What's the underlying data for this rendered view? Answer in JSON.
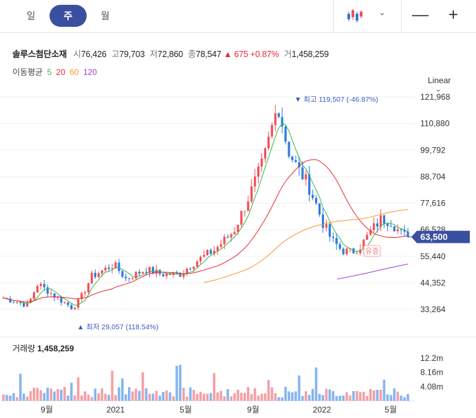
{
  "periods": [
    "일",
    "주",
    "월"
  ],
  "active_period": 1,
  "quote": {
    "name": "솔루스첨단소재",
    "open_label": "시",
    "open": "76,426",
    "high_label": "고",
    "high": "79,703",
    "low_label": "저",
    "low": "72,860",
    "close_label": "종",
    "close": "78,547",
    "change": "▲ 675 +0.87%",
    "volume_label": "거",
    "volume": "1,458,259"
  },
  "moving_average": {
    "label": "이동평균",
    "periods": [
      {
        "value": "5",
        "color": "#3ab54a"
      },
      {
        "value": "20",
        "color": "#e8293a"
      },
      {
        "value": "60",
        "color": "#f39a2f"
      },
      {
        "value": "120",
        "color": "#a43fd6"
      }
    ]
  },
  "scale": "Linear",
  "volume_panel": {
    "label": "거래량",
    "value": "1,458,259"
  },
  "colors": {
    "up": "#f5505a",
    "down": "#2e7be0",
    "vol_up": "#f4a0a6",
    "vol_down": "#86b5f1",
    "accent": "#3b4fa0"
  },
  "chart_data": {
    "type": "candlestick",
    "price_ticks": [
      121968,
      110880,
      99792,
      88704,
      77616,
      66528,
      55440,
      44352,
      33264
    ],
    "price_tick_labels": [
      "121,968",
      "110,880",
      "99,792",
      "88,704",
      "77,616",
      "66,528",
      "55,440",
      "44,352",
      "33,264"
    ],
    "volume_ticks": [
      12.2,
      8.16,
      4.08
    ],
    "volume_tick_labels": [
      "12.2m",
      "8.16m",
      "4.08m"
    ],
    "x_labels": [
      "9월",
      "2021",
      "5월",
      "9월",
      "2022",
      "5월"
    ],
    "last_price": "63,500",
    "max_annotation": "▼ 최고  119,507 (-46.87%)",
    "min_annotation": "▲ 최저  29,057 (118.54%)",
    "event_marker": "유증",
    "series": [
      {
        "name": "5",
        "color": "#3ab54a"
      },
      {
        "name": "20",
        "color": "#e8293a"
      },
      {
        "name": "60",
        "color": "#f39a2f"
      },
      {
        "name": "120",
        "color": "#a43fd6"
      }
    ]
  }
}
